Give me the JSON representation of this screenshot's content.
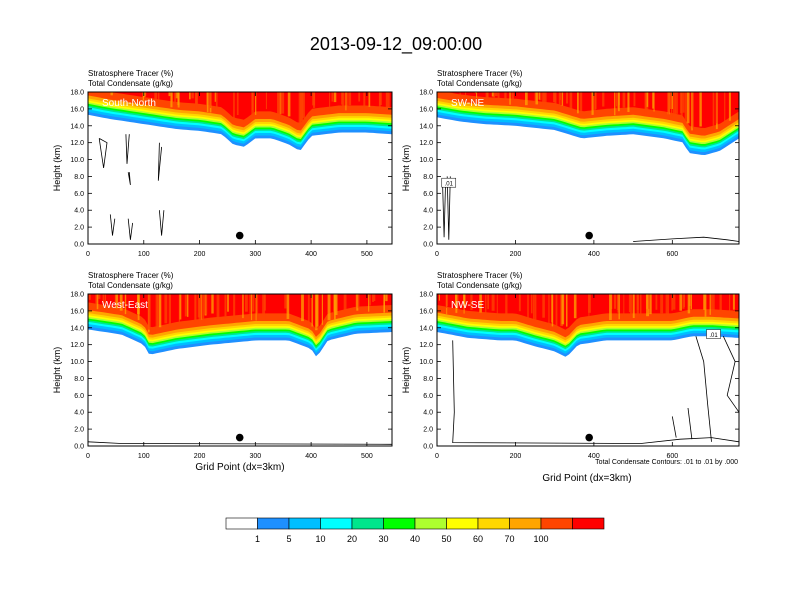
{
  "figure": {
    "title": "2013-09-12_09:00:00",
    "footnote": "Total Condensate Contours: .01 to .01 by .000",
    "xlabel": "Grid Point (dx=3km)"
  },
  "colorbar": {
    "colors": [
      "#ffffff",
      "#1e90ff",
      "#00bfff",
      "#00ffff",
      "#00e68c",
      "#00ff00",
      "#adff2f",
      "#ffff00",
      "#ffd700",
      "#ffa500",
      "#ff4500",
      "#ff0000"
    ],
    "labels": [
      "1",
      "5",
      "10",
      "20",
      "30",
      "40",
      "50",
      "60",
      "70",
      "100"
    ]
  },
  "chart_data": [
    {
      "type": "heatmap",
      "name": "South-North",
      "subtitle_lines": [
        "Stratosphere Tracer   (%)",
        "Total Condensate   (g/kg)"
      ],
      "ylabel": "Height (km)",
      "xlabel": "",
      "xlim": [
        0,
        545
      ],
      "ylim": [
        0,
        18
      ],
      "xticks": [
        "0",
        "100",
        "200",
        "300",
        "400",
        "500"
      ],
      "xtick_values": [
        0,
        100,
        200,
        300,
        400,
        500
      ],
      "yticks": [
        "0.0",
        "2.0",
        "4.0",
        "6.0",
        "8.0",
        "10.0",
        "12.0",
        "14.0",
        "16.0",
        "18.0"
      ],
      "tracer_edge_km": [
        [
          0,
          15.3
        ],
        [
          40,
          14.8
        ],
        [
          80,
          14.4
        ],
        [
          120,
          14.0
        ],
        [
          160,
          13.6
        ],
        [
          200,
          13.4
        ],
        [
          240,
          13.0
        ],
        [
          260,
          11.8
        ],
        [
          280,
          11.5
        ],
        [
          300,
          12.5
        ],
        [
          330,
          12.5
        ],
        [
          360,
          11.8
        ],
        [
          380,
          11.0
        ],
        [
          400,
          12.8
        ],
        [
          450,
          13.2
        ],
        [
          500,
          13.2
        ],
        [
          545,
          13.0
        ]
      ],
      "marker": {
        "x": 272,
        "y": 1.0
      },
      "condensate_contours": [
        [
          [
            20,
            12.5
          ],
          [
            28,
            9.0
          ],
          [
            34,
            12.0
          ],
          [
            20,
            12.5
          ]
        ],
        [
          [
            68,
            13.0
          ],
          [
            70,
            9.5
          ],
          [
            74,
            13.0
          ]
        ],
        [
          [
            72,
            8.5
          ],
          [
            76,
            7.0
          ],
          [
            74,
            8.5
          ]
        ],
        [
          [
            128,
            12.0
          ],
          [
            126,
            7.5
          ],
          [
            132,
            11.5
          ]
        ],
        [
          [
            40,
            3.5
          ],
          [
            44,
            1.0
          ],
          [
            48,
            3.0
          ]
        ],
        [
          [
            128,
            4.0
          ],
          [
            132,
            1.0
          ],
          [
            136,
            4.0
          ]
        ],
        [
          [
            72,
            3.0
          ],
          [
            76,
            0.5
          ],
          [
            80,
            2.5
          ]
        ]
      ]
    },
    {
      "type": "heatmap",
      "name": "SW-NE",
      "subtitle_lines": [
        "Stratosphere Tracer   (%)",
        "Total Condensate   (g/kg)"
      ],
      "ylabel": "Height (km)",
      "xlabel": "",
      "xlim": [
        0,
        770
      ],
      "ylim": [
        0,
        18
      ],
      "xticks": [
        "0",
        "200",
        "400",
        "600"
      ],
      "xtick_values": [
        0,
        200,
        400,
        600
      ],
      "yticks": [
        "0.0",
        "2.0",
        "4.0",
        "6.0",
        "8.0",
        "10.0",
        "12.0",
        "14.0",
        "16.0",
        "18.0"
      ],
      "tracer_edge_km": [
        [
          0,
          15.0
        ],
        [
          60,
          14.5
        ],
        [
          120,
          14.2
        ],
        [
          200,
          14.0
        ],
        [
          300,
          13.5
        ],
        [
          370,
          12.5
        ],
        [
          430,
          12.8
        ],
        [
          500,
          13.0
        ],
        [
          580,
          12.5
        ],
        [
          630,
          12.0
        ],
        [
          640,
          10.8
        ],
        [
          680,
          10.5
        ],
        [
          720,
          11.0
        ],
        [
          770,
          12.5
        ]
      ],
      "marker": {
        "x": 388,
        "y": 1.0
      },
      "condensate_contours": [
        [
          [
            14,
            7.5
          ],
          [
            18,
            0.8
          ],
          [
            22,
            7.5
          ],
          [
            14,
            7.5
          ]
        ],
        [
          [
            26,
            8.0
          ],
          [
            30,
            0.5
          ],
          [
            34,
            8.0
          ]
        ],
        [
          [
            500,
            0.3
          ],
          [
            600,
            0.6
          ],
          [
            680,
            0.8
          ],
          [
            740,
            0.5
          ],
          [
            770,
            0.3
          ]
        ]
      ],
      "contour_label": {
        "text": ".01",
        "x": 30,
        "y": 7.2
      }
    },
    {
      "type": "heatmap",
      "name": "West-East",
      "subtitle_lines": [
        "Stratosphere Tracer   (%)",
        "Total Condensate   (g/kg)"
      ],
      "ylabel": "Height (km)",
      "xlabel": "Grid Point (dx=3km)",
      "xlim": [
        0,
        545
      ],
      "ylim": [
        0,
        18
      ],
      "xticks": [
        "0",
        "100",
        "200",
        "300",
        "400",
        "500"
      ],
      "xtick_values": [
        0,
        100,
        200,
        300,
        400,
        500
      ],
      "yticks": [
        "0.0",
        "2.0",
        "4.0",
        "6.0",
        "8.0",
        "10.0",
        "12.0",
        "14.0",
        "16.0",
        "18.0"
      ],
      "tracer_edge_km": [
        [
          0,
          13.8
        ],
        [
          60,
          13.2
        ],
        [
          100,
          12.0
        ],
        [
          110,
          10.8
        ],
        [
          160,
          11.5
        ],
        [
          220,
          12.0
        ],
        [
          300,
          12.5
        ],
        [
          360,
          12.5
        ],
        [
          400,
          11.5
        ],
        [
          410,
          10.5
        ],
        [
          430,
          12.5
        ],
        [
          480,
          13.3
        ],
        [
          545,
          13.5
        ]
      ],
      "marker": {
        "x": 272,
        "y": 1.0
      },
      "condensate_contours": [
        [
          [
            0,
            0.5
          ],
          [
            60,
            0.3
          ],
          [
            545,
            0.2
          ]
        ]
      ]
    },
    {
      "type": "heatmap",
      "name": "NW-SE",
      "subtitle_lines": [
        "Stratosphere Tracer   (%)",
        "Total Condensate   (g/kg)"
      ],
      "ylabel": "Height (km)",
      "xlabel": "Grid Point (dx=3km)",
      "xlim": [
        0,
        770
      ],
      "ylim": [
        0,
        18
      ],
      "xticks": [
        "0",
        "200",
        "400",
        "600"
      ],
      "xtick_values": [
        0,
        200,
        400,
        600
      ],
      "yticks": [
        "0.0",
        "2.0",
        "4.0",
        "6.0",
        "8.0",
        "10.0",
        "12.0",
        "14.0",
        "16.0",
        "18.0"
      ],
      "tracer_edge_km": [
        [
          0,
          13.5
        ],
        [
          80,
          12.8
        ],
        [
          160,
          12.5
        ],
        [
          200,
          12.5
        ],
        [
          250,
          11.8
        ],
        [
          300,
          11.2
        ],
        [
          330,
          10.5
        ],
        [
          360,
          12.0
        ],
        [
          430,
          12.5
        ],
        [
          500,
          12.5
        ],
        [
          600,
          12.5
        ],
        [
          650,
          13.0
        ],
        [
          700,
          13.0
        ],
        [
          770,
          12.8
        ]
      ],
      "marker": {
        "x": 388,
        "y": 1.0
      },
      "condensate_contours": [
        [
          [
            40,
            12.5
          ],
          [
            44,
            4.0
          ],
          [
            40,
            0.4
          ],
          [
            520,
            0.3
          ],
          [
            620,
            0.8
          ],
          [
            700,
            1.0
          ],
          [
            770,
            0.5
          ]
        ],
        [
          [
            660,
            13.0
          ],
          [
            680,
            10.0
          ],
          [
            690,
            5.0
          ],
          [
            700,
            0.5
          ]
        ],
        [
          [
            730,
            13.0
          ],
          [
            760,
            10.0
          ],
          [
            740,
            6.0
          ],
          [
            770,
            4.0
          ]
        ],
        [
          [
            640,
            4.5
          ],
          [
            650,
            0.8
          ]
        ],
        [
          [
            600,
            3.5
          ],
          [
            610,
            1.0
          ]
        ]
      ],
      "contour_label": {
        "text": ".01",
        "x": 705,
        "y": 13.2
      }
    }
  ]
}
